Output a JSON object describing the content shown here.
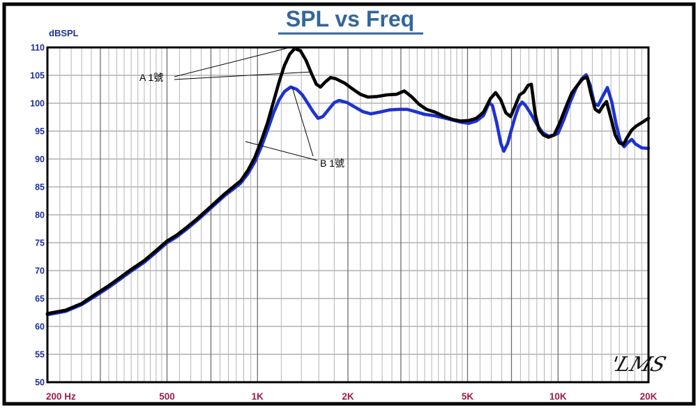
{
  "chart_data": {
    "type": "line",
    "title": "SPL vs Freq",
    "ylabel": "dBSPL",
    "x_scale": "log",
    "xlim": [
      200,
      20000
    ],
    "ylim": [
      50,
      110
    ],
    "grid": true,
    "y_ticks": [
      110,
      105,
      100,
      95,
      90,
      85,
      80,
      75,
      70,
      65,
      60,
      55,
      50
    ],
    "x_ticks": [
      {
        "label": "200 Hz",
        "f": 200
      },
      {
        "label": "500",
        "f": 500
      },
      {
        "label": "1K",
        "f": 1000
      },
      {
        "label": "2K",
        "f": 2000
      },
      {
        "label": "5K",
        "f": 5000
      },
      {
        "label": "10K",
        "f": 10000
      },
      {
        "label": "20K",
        "f": 20000
      }
    ],
    "colors": {
      "title": "#336699",
      "y_axis_labels": "#1b2f9c",
      "x_axis_labels": "#9e1b4a",
      "series_a": "#000000",
      "series_b": "#1e32d2"
    },
    "signature": "'LMS",
    "series": [
      {
        "name": "A 1號",
        "color": "#000000",
        "points": [
          [
            200,
            62.3
          ],
          [
            230,
            62.9
          ],
          [
            260,
            64.1
          ],
          [
            290,
            65.8
          ],
          [
            320,
            67.3
          ],
          [
            350,
            68.8
          ],
          [
            380,
            70.2
          ],
          [
            420,
            71.8
          ],
          [
            460,
            73.6
          ],
          [
            500,
            75.3
          ],
          [
            540,
            76.4
          ],
          [
            580,
            77.7
          ],
          [
            630,
            79.3
          ],
          [
            680,
            80.9
          ],
          [
            730,
            82.4
          ],
          [
            780,
            83.8
          ],
          [
            830,
            85.0
          ],
          [
            880,
            86.1
          ],
          [
            930,
            88.0
          ],
          [
            980,
            90.3
          ],
          [
            1030,
            93.3
          ],
          [
            1080,
            96.5
          ],
          [
            1130,
            100.2
          ],
          [
            1180,
            103.8
          ],
          [
            1230,
            106.8
          ],
          [
            1280,
            108.8
          ],
          [
            1330,
            109.8
          ],
          [
            1390,
            109.4
          ],
          [
            1450,
            107.7
          ],
          [
            1510,
            105.4
          ],
          [
            1570,
            103.4
          ],
          [
            1620,
            102.9
          ],
          [
            1680,
            103.8
          ],
          [
            1750,
            104.6
          ],
          [
            1820,
            104.4
          ],
          [
            1950,
            103.6
          ],
          [
            2080,
            102.5
          ],
          [
            2200,
            101.6
          ],
          [
            2330,
            101.1
          ],
          [
            2500,
            101.2
          ],
          [
            2700,
            101.5
          ],
          [
            2900,
            101.6
          ],
          [
            3080,
            102.2
          ],
          [
            3250,
            101.2
          ],
          [
            3450,
            99.8
          ],
          [
            3650,
            98.9
          ],
          [
            3900,
            98.4
          ],
          [
            4150,
            97.7
          ],
          [
            4450,
            97.1
          ],
          [
            4750,
            96.8
          ],
          [
            5050,
            96.9
          ],
          [
            5350,
            97.3
          ],
          [
            5650,
            98.4
          ],
          [
            5950,
            100.8
          ],
          [
            6200,
            101.9
          ],
          [
            6450,
            100.6
          ],
          [
            6700,
            98.3
          ],
          [
            6950,
            97.6
          ],
          [
            7200,
            99.5
          ],
          [
            7450,
            101.5
          ],
          [
            7700,
            102.0
          ],
          [
            7950,
            103.2
          ],
          [
            8150,
            103.4
          ],
          [
            8400,
            98.0
          ],
          [
            8650,
            95.2
          ],
          [
            8950,
            94.3
          ],
          [
            9300,
            93.9
          ],
          [
            9700,
            94.3
          ],
          [
            10100,
            96.3
          ],
          [
            10600,
            99.2
          ],
          [
            11100,
            101.8
          ],
          [
            11600,
            103.2
          ],
          [
            12100,
            104.4
          ],
          [
            12500,
            104.7
          ],
          [
            12900,
            101.5
          ],
          [
            13300,
            98.9
          ],
          [
            13700,
            98.4
          ],
          [
            14100,
            99.5
          ],
          [
            14500,
            100.3
          ],
          [
            15000,
            97.3
          ],
          [
            15500,
            94.3
          ],
          [
            16000,
            92.9
          ],
          [
            16500,
            92.6
          ],
          [
            17000,
            93.9
          ],
          [
            17600,
            95.2
          ],
          [
            18200,
            95.9
          ],
          [
            19100,
            96.6
          ],
          [
            20000,
            97.3
          ]
        ]
      },
      {
        "name": "B 1號",
        "color": "#1e32d2",
        "points": [
          [
            200,
            62.1
          ],
          [
            230,
            62.7
          ],
          [
            260,
            63.9
          ],
          [
            290,
            65.5
          ],
          [
            320,
            67.0
          ],
          [
            350,
            68.5
          ],
          [
            380,
            69.9
          ],
          [
            420,
            71.5
          ],
          [
            460,
            73.3
          ],
          [
            500,
            75.0
          ],
          [
            540,
            76.1
          ],
          [
            580,
            77.4
          ],
          [
            630,
            79.0
          ],
          [
            680,
            80.6
          ],
          [
            730,
            82.1
          ],
          [
            780,
            83.5
          ],
          [
            830,
            84.6
          ],
          [
            880,
            85.7
          ],
          [
            930,
            87.4
          ],
          [
            980,
            89.5
          ],
          [
            1030,
            92.2
          ],
          [
            1080,
            95.2
          ],
          [
            1130,
            98.2
          ],
          [
            1180,
            100.6
          ],
          [
            1230,
            102.1
          ],
          [
            1290,
            102.9
          ],
          [
            1350,
            102.5
          ],
          [
            1410,
            101.5
          ],
          [
            1470,
            100.0
          ],
          [
            1530,
            98.5
          ],
          [
            1590,
            97.3
          ],
          [
            1650,
            97.6
          ],
          [
            1720,
            98.8
          ],
          [
            1800,
            100.1
          ],
          [
            1870,
            100.5
          ],
          [
            1990,
            100.1
          ],
          [
            2110,
            99.3
          ],
          [
            2240,
            98.5
          ],
          [
            2380,
            98.1
          ],
          [
            2550,
            98.4
          ],
          [
            2750,
            98.8
          ],
          [
            2950,
            98.9
          ],
          [
            3150,
            98.9
          ],
          [
            3350,
            98.5
          ],
          [
            3600,
            98.0
          ],
          [
            3850,
            97.8
          ],
          [
            4150,
            97.4
          ],
          [
            4450,
            97.0
          ],
          [
            4750,
            96.6
          ],
          [
            5050,
            96.4
          ],
          [
            5350,
            96.8
          ],
          [
            5650,
            97.8
          ],
          [
            5900,
            100.1
          ],
          [
            6050,
            99.6
          ],
          [
            6250,
            96.5
          ],
          [
            6450,
            92.8
          ],
          [
            6600,
            91.4
          ],
          [
            6800,
            92.8
          ],
          [
            7000,
            95.3
          ],
          [
            7200,
            97.6
          ],
          [
            7400,
            99.4
          ],
          [
            7600,
            100.2
          ],
          [
            7800,
            99.6
          ],
          [
            8100,
            98.2
          ],
          [
            8500,
            96.2
          ],
          [
            8900,
            94.7
          ],
          [
            9300,
            94.1
          ],
          [
            9700,
            94.3
          ],
          [
            10000,
            94.6
          ],
          [
            10500,
            97.3
          ],
          [
            11000,
            100.3
          ],
          [
            11500,
            102.8
          ],
          [
            12000,
            104.4
          ],
          [
            12400,
            105.1
          ],
          [
            12800,
            103.2
          ],
          [
            13200,
            100.0
          ],
          [
            13600,
            99.6
          ],
          [
            14100,
            101.3
          ],
          [
            14600,
            102.8
          ],
          [
            15100,
            100.2
          ],
          [
            15600,
            96.3
          ],
          [
            16100,
            93.3
          ],
          [
            16600,
            92.2
          ],
          [
            17100,
            93.0
          ],
          [
            17600,
            93.5
          ],
          [
            18100,
            92.7
          ],
          [
            19000,
            92.0
          ],
          [
            20000,
            91.9
          ]
        ]
      }
    ],
    "annotations": [
      {
        "label": "A 1號",
        "series": "A"
      },
      {
        "label": "B 1號",
        "series": "B"
      }
    ]
  }
}
